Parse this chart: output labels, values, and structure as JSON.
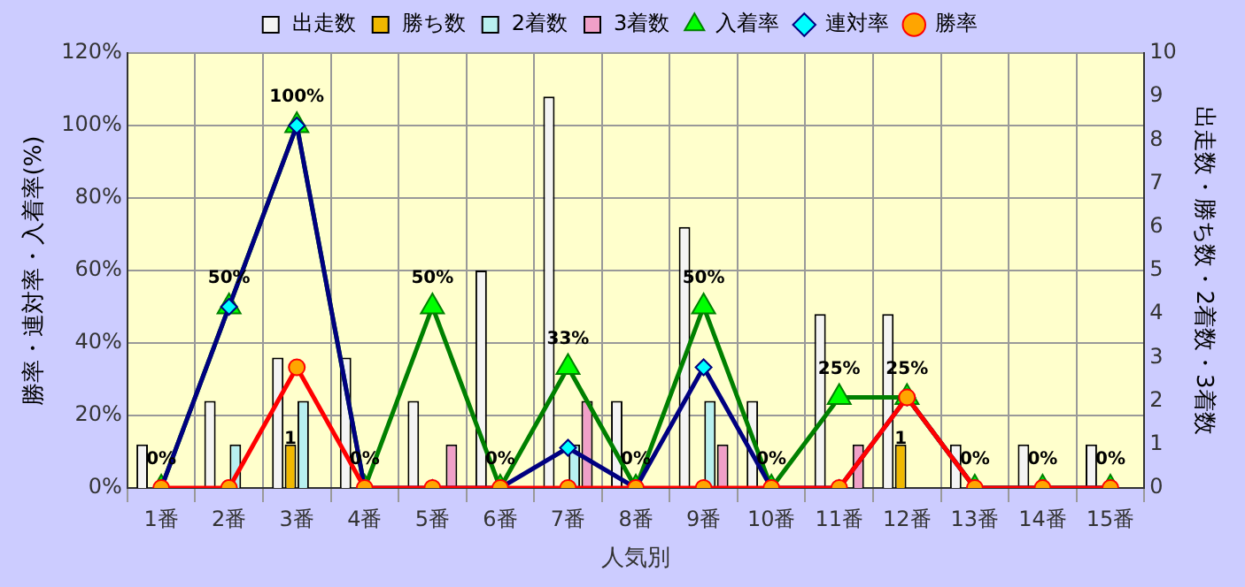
{
  "chart_data": {
    "type": "bar",
    "xlabel": "人気別",
    "ylabel": "勝率・連対率・入着率(%)",
    "y2label": "出走数・勝ち数・2着数・3着数",
    "categories": [
      "1番",
      "2番",
      "3番",
      "4番",
      "5番",
      "6番",
      "7番",
      "8番",
      "9番",
      "10番",
      "11番",
      "12番",
      "13番",
      "14番",
      "15番"
    ],
    "series": [
      {
        "name": "出走数",
        "axis": "y2",
        "color": "#f4f4f4",
        "values": [
          1,
          2,
          3,
          3,
          2,
          5,
          9,
          2,
          6,
          2,
          4,
          4,
          1,
          1,
          1
        ]
      },
      {
        "name": "勝ち数",
        "axis": "y2",
        "color": "#f0b800",
        "values": [
          0,
          0,
          1,
          0,
          0,
          0,
          0,
          0,
          0,
          0,
          0,
          1,
          0,
          0,
          0
        ],
        "value_labels": [
          null,
          null,
          "1",
          null,
          null,
          null,
          null,
          null,
          null,
          null,
          null,
          "1",
          null,
          null,
          null
        ]
      },
      {
        "name": "2着数",
        "axis": "y2",
        "color": "#b8f0f0",
        "values": [
          0,
          1,
          2,
          0,
          0,
          0,
          1,
          0,
          2,
          0,
          0,
          0,
          0,
          0,
          0
        ]
      },
      {
        "name": "3着数",
        "axis": "y2",
        "color": "#f0a0c8",
        "values": [
          0,
          0,
          0,
          0,
          1,
          0,
          2,
          0,
          1,
          0,
          1,
          0,
          0,
          0,
          0
        ]
      },
      {
        "name": "入着率",
        "type": "line",
        "color": "#008000",
        "marker": "triangle",
        "values": [
          0,
          50,
          100,
          0,
          50,
          0,
          33.3,
          0,
          50,
          0,
          25,
          25,
          0,
          0,
          0
        ],
        "value_labels": [
          "0%",
          "50%",
          "100%",
          "0%",
          "50%",
          "0%",
          "33%",
          "0%",
          "50%",
          "0%",
          "25%",
          "25%",
          "0%",
          "0%",
          "0%"
        ]
      },
      {
        "name": "連対率",
        "type": "line",
        "color": "#000080",
        "marker": "diamond",
        "values": [
          0,
          50,
          100,
          0,
          0,
          0,
          11.1,
          0,
          33.3,
          0,
          0,
          25,
          0,
          0,
          0
        ]
      },
      {
        "name": "勝率",
        "type": "line",
        "color": "#ff0000",
        "marker": "circle",
        "values": [
          0,
          0,
          33.3,
          0,
          0,
          0,
          0,
          0,
          0,
          0,
          0,
          25,
          0,
          0,
          0
        ]
      }
    ],
    "ylim": [
      0,
      120
    ],
    "yticks": [
      {
        "value": 0,
        "label": "0%"
      },
      {
        "value": 20,
        "label": "20%"
      },
      {
        "value": 40,
        "label": "40%"
      },
      {
        "value": 60,
        "label": "60%"
      },
      {
        "value": 80,
        "label": "80%"
      },
      {
        "value": 100,
        "label": "100%"
      },
      {
        "value": 120,
        "label": "120%"
      }
    ],
    "y2lim": [
      0,
      10
    ],
    "y2ticks": [
      0,
      1,
      2,
      3,
      4,
      5,
      6,
      7,
      8,
      9,
      10
    ],
    "grid": true,
    "legend": "top",
    "line_style": "solid"
  }
}
